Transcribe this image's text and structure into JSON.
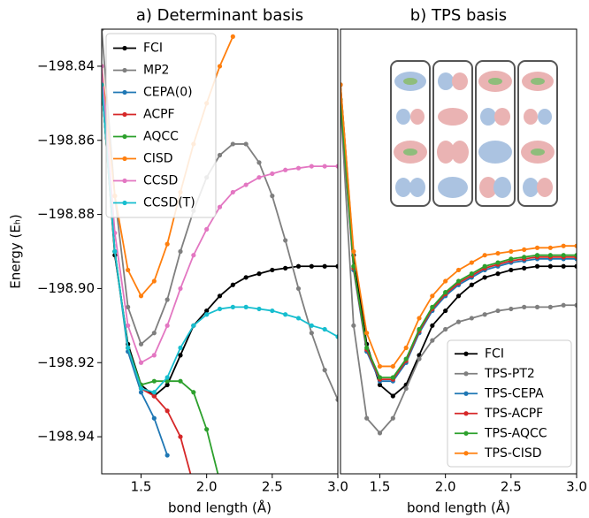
{
  "chart_data": [
    {
      "type": "line",
      "title": "a) Determinant basis",
      "xlabel": "bond length (Å)",
      "ylabel": "Energy (Eₕ)",
      "x": [
        1.2,
        1.3,
        1.4,
        1.5,
        1.6,
        1.7,
        1.8,
        1.9,
        2.0,
        2.1,
        2.2,
        2.3,
        2.4,
        2.5,
        2.6,
        2.7,
        2.8,
        2.9,
        3.0
      ],
      "xlim": [
        1.2,
        3.0
      ],
      "ylim": [
        -198.95,
        -198.83
      ],
      "xticks": [
        1.5,
        {
          "value": 2,
          "label": "2.0"
        },
        2.5,
        {
          "value": 3,
          "label": "3.0"
        }
      ],
      "yticks": [
        {
          "value": -198.94,
          "label": "−198.94"
        },
        {
          "value": -198.92,
          "label": "−198.92"
        },
        {
          "value": -198.9,
          "label": "−198.90"
        },
        {
          "value": -198.88,
          "label": "−198.88"
        },
        {
          "value": -198.86,
          "label": "−198.86"
        },
        {
          "value": -198.84,
          "label": "−198.84"
        }
      ],
      "legend": "upper left",
      "series": [
        {
          "name": "FCI",
          "color": "#000000",
          "values": [
            -198.845,
            -198.891,
            -198.915,
            -198.926,
            -198.929,
            -198.926,
            -198.918,
            -198.91,
            -198.906,
            -198.902,
            -198.899,
            -198.897,
            -198.896,
            -198.895,
            -198.8945,
            -198.894,
            -198.894,
            -198.894,
            -198.894
          ]
        },
        {
          "name": "MP2",
          "color": "#7f7f7f",
          "values": [
            -198.83,
            -198.875,
            -198.905,
            -198.915,
            -198.912,
            -198.903,
            -198.89,
            -198.879,
            -198.87,
            -198.864,
            -198.861,
            -198.861,
            -198.866,
            -198.875,
            -198.887,
            -198.9,
            -198.912,
            -198.922,
            -198.93
          ]
        },
        {
          "name": "CEPA(0)",
          "color": "#1f77b4",
          "values": [
            -198.845,
            -198.89,
            -198.917,
            -198.928,
            -198.935,
            -198.945,
            null,
            null,
            null,
            null,
            null,
            null,
            null,
            null,
            null,
            null,
            null,
            null,
            null
          ]
        },
        {
          "name": "ACPF",
          "color": "#d62728",
          "values": [
            -198.845,
            -198.89,
            -198.916,
            -198.927,
            -198.929,
            -198.933,
            -198.94,
            -198.953,
            null,
            null,
            null,
            null,
            null,
            null,
            null,
            null,
            null,
            null,
            null
          ]
        },
        {
          "name": "AQCC",
          "color": "#2ca02c",
          "values": [
            -198.845,
            -198.89,
            -198.916,
            -198.926,
            -198.925,
            -198.925,
            -198.925,
            -198.928,
            -198.938,
            -198.952,
            null,
            null,
            null,
            null,
            null,
            null,
            null,
            null,
            null
          ]
        },
        {
          "name": "CISD",
          "color": "#ff7f0e",
          "values": [
            -198.84,
            -198.875,
            -198.895,
            -198.902,
            -198.898,
            -198.888,
            -198.874,
            -198.861,
            -198.85,
            -198.84,
            -198.832,
            null,
            null,
            null,
            null,
            null,
            null,
            null,
            null
          ]
        },
        {
          "name": "CCSD",
          "color": "#e377c2",
          "values": [
            -198.84,
            -198.885,
            -198.91,
            -198.92,
            -198.918,
            -198.91,
            -198.9,
            -198.891,
            -198.884,
            -198.878,
            -198.874,
            -198.872,
            -198.87,
            -198.869,
            -198.868,
            -198.8675,
            -198.867,
            -198.867,
            -198.867
          ]
        },
        {
          "name": "CCSD(T)",
          "color": "#17becf",
          "values": [
            -198.845,
            -198.89,
            -198.916,
            -198.927,
            -198.928,
            -198.924,
            -198.916,
            -198.91,
            -198.907,
            -198.9055,
            -198.905,
            -198.905,
            -198.9055,
            -198.906,
            -198.907,
            -198.908,
            -198.91,
            -198.911,
            -198.913
          ]
        }
      ]
    },
    {
      "type": "line",
      "title": "b) TPS basis",
      "xlabel": "bond length (Å)",
      "x": [
        1.2,
        1.3,
        1.4,
        1.5,
        1.6,
        1.7,
        1.8,
        1.9,
        2.0,
        2.1,
        2.2,
        2.3,
        2.4,
        2.5,
        2.6,
        2.7,
        2.8,
        2.9,
        3.0
      ],
      "xlim": [
        1.2,
        3.0
      ],
      "ylim": [
        -198.95,
        -198.83
      ],
      "xticks": [
        1.5,
        {
          "value": 2,
          "label": "2.0"
        },
        2.5,
        {
          "value": 3,
          "label": "3.0"
        }
      ],
      "legend": "lower right",
      "series": [
        {
          "name": "FCI",
          "color": "#000000",
          "values": [
            -198.845,
            -198.891,
            -198.915,
            -198.926,
            -198.929,
            -198.926,
            -198.918,
            -198.91,
            -198.906,
            -198.902,
            -198.899,
            -198.897,
            -198.896,
            -198.895,
            -198.8945,
            -198.894,
            -198.894,
            -198.894,
            -198.894
          ]
        },
        {
          "name": "TPS-PT2",
          "color": "#7f7f7f",
          "values": [
            -198.85,
            -198.91,
            -198.935,
            -198.939,
            -198.935,
            -198.927,
            -198.919,
            -198.914,
            -198.911,
            -198.909,
            -198.908,
            -198.907,
            -198.906,
            -198.9055,
            -198.905,
            -198.905,
            -198.905,
            -198.9045,
            -198.9045
          ]
        },
        {
          "name": "TPS-CEPA",
          "color": "#1f77b4",
          "values": [
            -198.85,
            -198.895,
            -198.917,
            -198.925,
            -198.925,
            -198.92,
            -198.912,
            -198.906,
            -198.902,
            -198.899,
            -198.897,
            -198.895,
            -198.894,
            -198.893,
            -198.8925,
            -198.892,
            -198.892,
            -198.892,
            -198.892
          ]
        },
        {
          "name": "TPS-ACPF",
          "color": "#d62728",
          "values": [
            -198.8495,
            -198.8945,
            -198.9165,
            -198.9245,
            -198.9245,
            -198.9195,
            -198.9115,
            -198.9055,
            -198.9015,
            -198.8985,
            -198.8965,
            -198.8945,
            -198.8935,
            -198.8925,
            -198.892,
            -198.8915,
            -198.8915,
            -198.8915,
            -198.8915
          ]
        },
        {
          "name": "TPS-AQCC",
          "color": "#2ca02c",
          "values": [
            -198.849,
            -198.894,
            -198.916,
            -198.924,
            -198.924,
            -198.919,
            -198.911,
            -198.905,
            -198.901,
            -198.898,
            -198.896,
            -198.894,
            -198.893,
            -198.892,
            -198.8915,
            -198.891,
            -198.891,
            -198.891,
            -198.891
          ]
        },
        {
          "name": "TPS-CISD",
          "color": "#ff7f0e",
          "values": [
            -198.845,
            -198.89,
            -198.912,
            -198.921,
            -198.921,
            -198.916,
            -198.908,
            -198.902,
            -198.898,
            -198.895,
            -198.893,
            -198.891,
            -198.8905,
            -198.89,
            -198.8895,
            -198.889,
            -198.889,
            -198.8885,
            -198.8885
          ]
        }
      ]
    }
  ]
}
